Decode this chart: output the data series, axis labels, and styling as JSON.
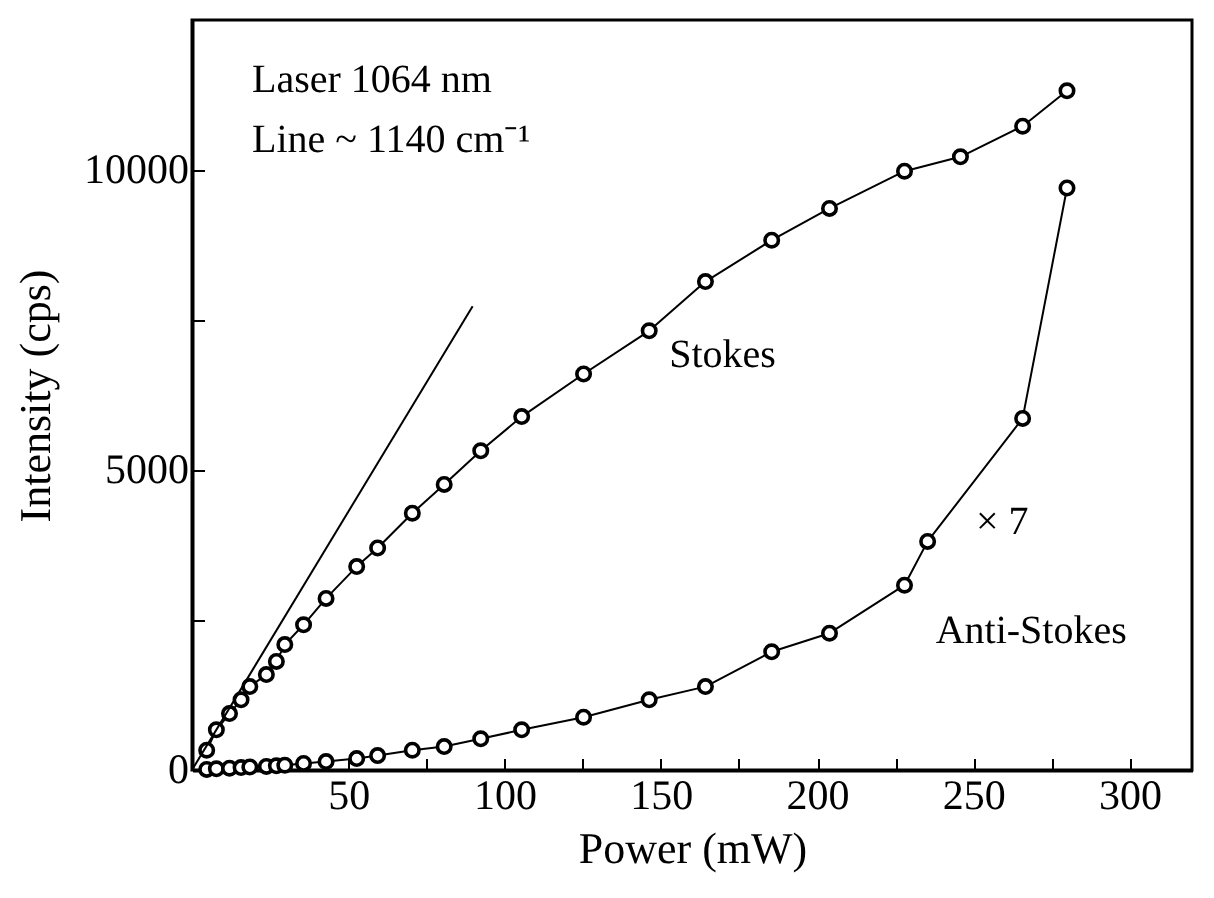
{
  "chart_data": {
    "type": "line",
    "xlabel": "Power (mW)",
    "ylabel": "Intensity (cps)",
    "annotations": [
      "Laser 1064 nm",
      "Line ~ 1140 cm⁻¹",
      "× 7"
    ],
    "xlim": [
      0,
      320
    ],
    "ylim": [
      0,
      12500
    ],
    "xticks": [
      {
        "value": 25,
        "label": null
      },
      50,
      {
        "value": 75,
        "label": null
      },
      100,
      {
        "value": 125,
        "label": null
      },
      150,
      {
        "value": 175,
        "label": null
      },
      200,
      {
        "value": 225,
        "label": null
      },
      250,
      {
        "value": 275,
        "label": null
      },
      300
    ],
    "yticks": [
      0,
      {
        "value": 2500,
        "label": null
      },
      5000,
      {
        "value": 7500,
        "label": null
      },
      10000
    ],
    "marker": "circle",
    "series": [
      {
        "name": "Stokes",
        "color": "#000000",
        "x": [
          4.7,
          7.8,
          12,
          15.7,
          18.5,
          23.8,
          27,
          29.7,
          35.7,
          42.9,
          52.7,
          59.4,
          70.5,
          80.7,
          92.4,
          105.5,
          125.3,
          146.3,
          164.3,
          185.5,
          204,
          228,
          245.9,
          265.8,
          280
        ],
        "values": [
          330,
          670,
          940,
          1170,
          1390,
          1590,
          1810,
          2090,
          2420,
          2860,
          3390,
          3700,
          4280,
          4760,
          5320,
          5890,
          6600,
          7320,
          8140,
          8830,
          9360,
          9980,
          10220,
          10730,
          11320
        ]
      },
      {
        "name": "Anti-Stokes",
        "color": "#000000",
        "x": [
          4.7,
          7.8,
          12,
          15.7,
          18.5,
          23.8,
          27,
          29.7,
          35.7,
          42.9,
          52.7,
          59.4,
          70.5,
          80.7,
          92.4,
          105.5,
          125.3,
          146.3,
          164.3,
          185.5,
          204,
          228,
          235.4,
          265.8,
          280
        ],
        "values": [
          10,
          20,
          30,
          40,
          50,
          60,
          70,
          80,
          110,
          140,
          190,
          240,
          330,
          390,
          520,
          670,
          880,
          1170,
          1390,
          1970,
          2280,
          3080,
          3810,
          5860,
          9700
        ]
      },
      {
        "color": "#000000",
        "marker": "none",
        "x": [
          0,
          89.8
        ],
        "values": [
          0,
          7730
        ]
      }
    ]
  }
}
